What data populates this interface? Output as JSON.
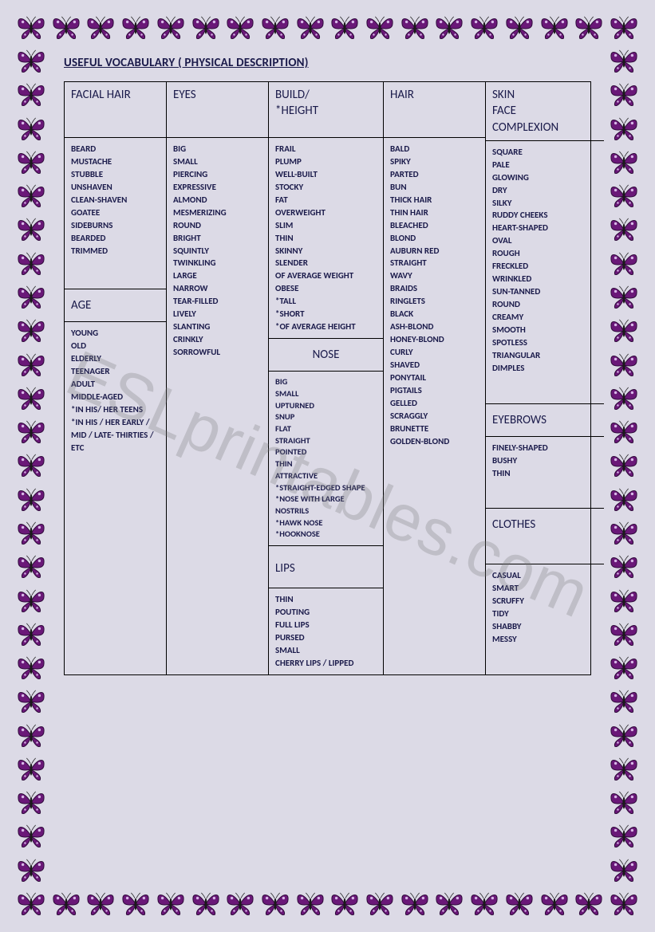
{
  "title": "USEFUL  VOCABULARY ( PHYSICAL DESCRIPTION)",
  "watermark": "ESLprintables.com",
  "border": {
    "butterfly_count_horizontal": 18,
    "butterfly_count_vertical": 25,
    "wing_color": "#6a1878",
    "wing_edge": "#2a0836",
    "body_color": "#1a1a1a",
    "spot_color": "#d8b8e8"
  },
  "columns": [
    {
      "sections": [
        {
          "header": "FACIAL HAIR",
          "items": [
            "BEARD",
            "MUSTACHE",
            "STUBBLE",
            "UNSHAVEN",
            "CLEAN-SHAVEN",
            "GOATEE",
            "SIDEBURNS",
            "BEARDED",
            "TRIMMED"
          ]
        },
        {
          "header": "AGE",
          "items": [
            "YOUNG",
            "OLD",
            "ELDERLY",
            "TEENAGER",
            "ADULT",
            "MIDDLE-AGED",
            "*IN HIS/ HER TEENS",
            "*IN HIS / HER EARLY / MID / LATE- THIRTIES / ETC"
          ]
        }
      ]
    },
    {
      "sections": [
        {
          "header": "EYES",
          "items": [
            "BIG",
            "SMALL",
            "PIERCING",
            "EXPRESSIVE",
            "ALMOND",
            "MESMERIZING",
            "ROUND",
            "BRIGHT",
            "SQUINTLY",
            "TWINKLING",
            "LARGE",
            "NARROW",
            "TEAR-FILLED",
            "LIVELY",
            "SLANTING",
            "CRINKLY",
            "SORROWFUL"
          ]
        }
      ]
    },
    {
      "sections": [
        {
          "header": "BUILD/ *HEIGHT",
          "items": [
            "FRAIL",
            "PLUMP",
            "WELL-BUILT",
            "STOCKY",
            "FAT",
            "OVERWEIGHT",
            "SLIM",
            "THIN",
            "SKINNY",
            "SLENDER",
            "OF AVERAGE WEIGHT",
            "OBESE",
            "*TALL",
            "*SHORT",
            "*OF AVERAGE HEIGHT"
          ]
        },
        {
          "header": "NOSE",
          "items": [
            "BIG",
            "SMALL",
            "UPTURNED",
            "SNUP",
            "FLAT",
            "STRAIGHT",
            "POINTED",
            "THIN",
            "ATTRACTIVE",
            "*STRAIGHT-EDGED SHAPE",
            "*NOSE WITH LARGE NOSTRILS",
            "*HAWK NOSE",
            "*HOOKNOSE"
          ]
        },
        {
          "header": "LIPS",
          "items": [
            "THIN",
            "POUTING",
            "FULL LIPS",
            "PURSED",
            "SMALL",
            "CHERRY LIPS / LIPPED"
          ]
        }
      ]
    },
    {
      "sections": [
        {
          "header": "HAIR",
          "items": [
            "BALD",
            "SPIKY",
            "PARTED",
            "BUN",
            "THICK HAIR",
            "THIN HAIR",
            "BLEACHED",
            "BLOND",
            "AUBURN RED",
            "STRAIGHT",
            "WAVY",
            "BRAIDS",
            "RINGLETS",
            "BLACK",
            "ASH-BLOND",
            "HONEY-BLOND",
            "CURLY",
            "SHAVED",
            "PONYTAIL",
            "PIGTAILS",
            "GELLED",
            "SCRAGGLY",
            "BRUNETTE",
            "GOLDEN-BLOND"
          ]
        }
      ]
    },
    {
      "sections": [
        {
          "header": "SKIN FACE COMPLEXION",
          "items": [
            "SQUARE",
            "PALE",
            "GLOWING",
            "DRY",
            "SILKY",
            "RUDDY CHEEKS",
            "HEART-SHAPED",
            "OVAL",
            "ROUGH",
            "FRECKLED",
            "WRINKLED",
            "SUN-TANNED",
            "ROUND",
            "CREAMY",
            "SMOOTH",
            "SPOTLESS",
            "TRIANGULAR",
            "DIMPLES"
          ]
        },
        {
          "header": "EYEBROWS",
          "items": [
            "FINELY-SHAPED",
            "BUSHY",
            "THIN"
          ]
        },
        {
          "header": "CLOTHES",
          "items": [
            "CASUAL",
            "SMART",
            "SCRUFFY",
            "TIDY",
            "SHABBY",
            "MESSY"
          ]
        }
      ]
    }
  ]
}
